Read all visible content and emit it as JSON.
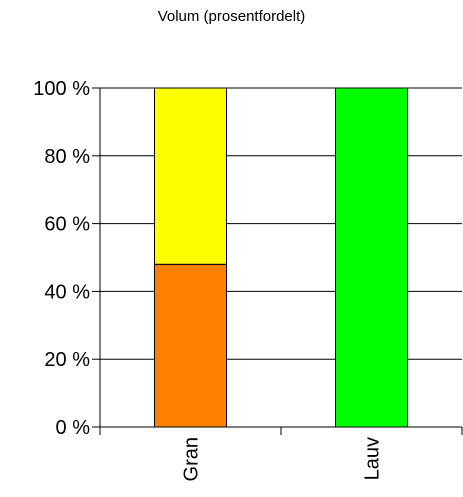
{
  "chart_data": {
    "type": "bar",
    "stacked": true,
    "title": "Volum (prosentfordelt)",
    "xlabel": "",
    "ylabel": "",
    "categories": [
      "Gran",
      "Lauv"
    ],
    "y_ticks": [
      "0 %",
      "20 %",
      "40 %",
      "60 %",
      "80 %",
      "100 %"
    ],
    "ylim": [
      0,
      100
    ],
    "grid": true,
    "legend": "none",
    "series": [
      {
        "color": "#ff8000",
        "values": [
          48,
          0
        ]
      },
      {
        "color": "#ffff00",
        "values": [
          52,
          0
        ]
      },
      {
        "color": "#00ff00",
        "values": [
          0,
          100
        ]
      }
    ]
  }
}
